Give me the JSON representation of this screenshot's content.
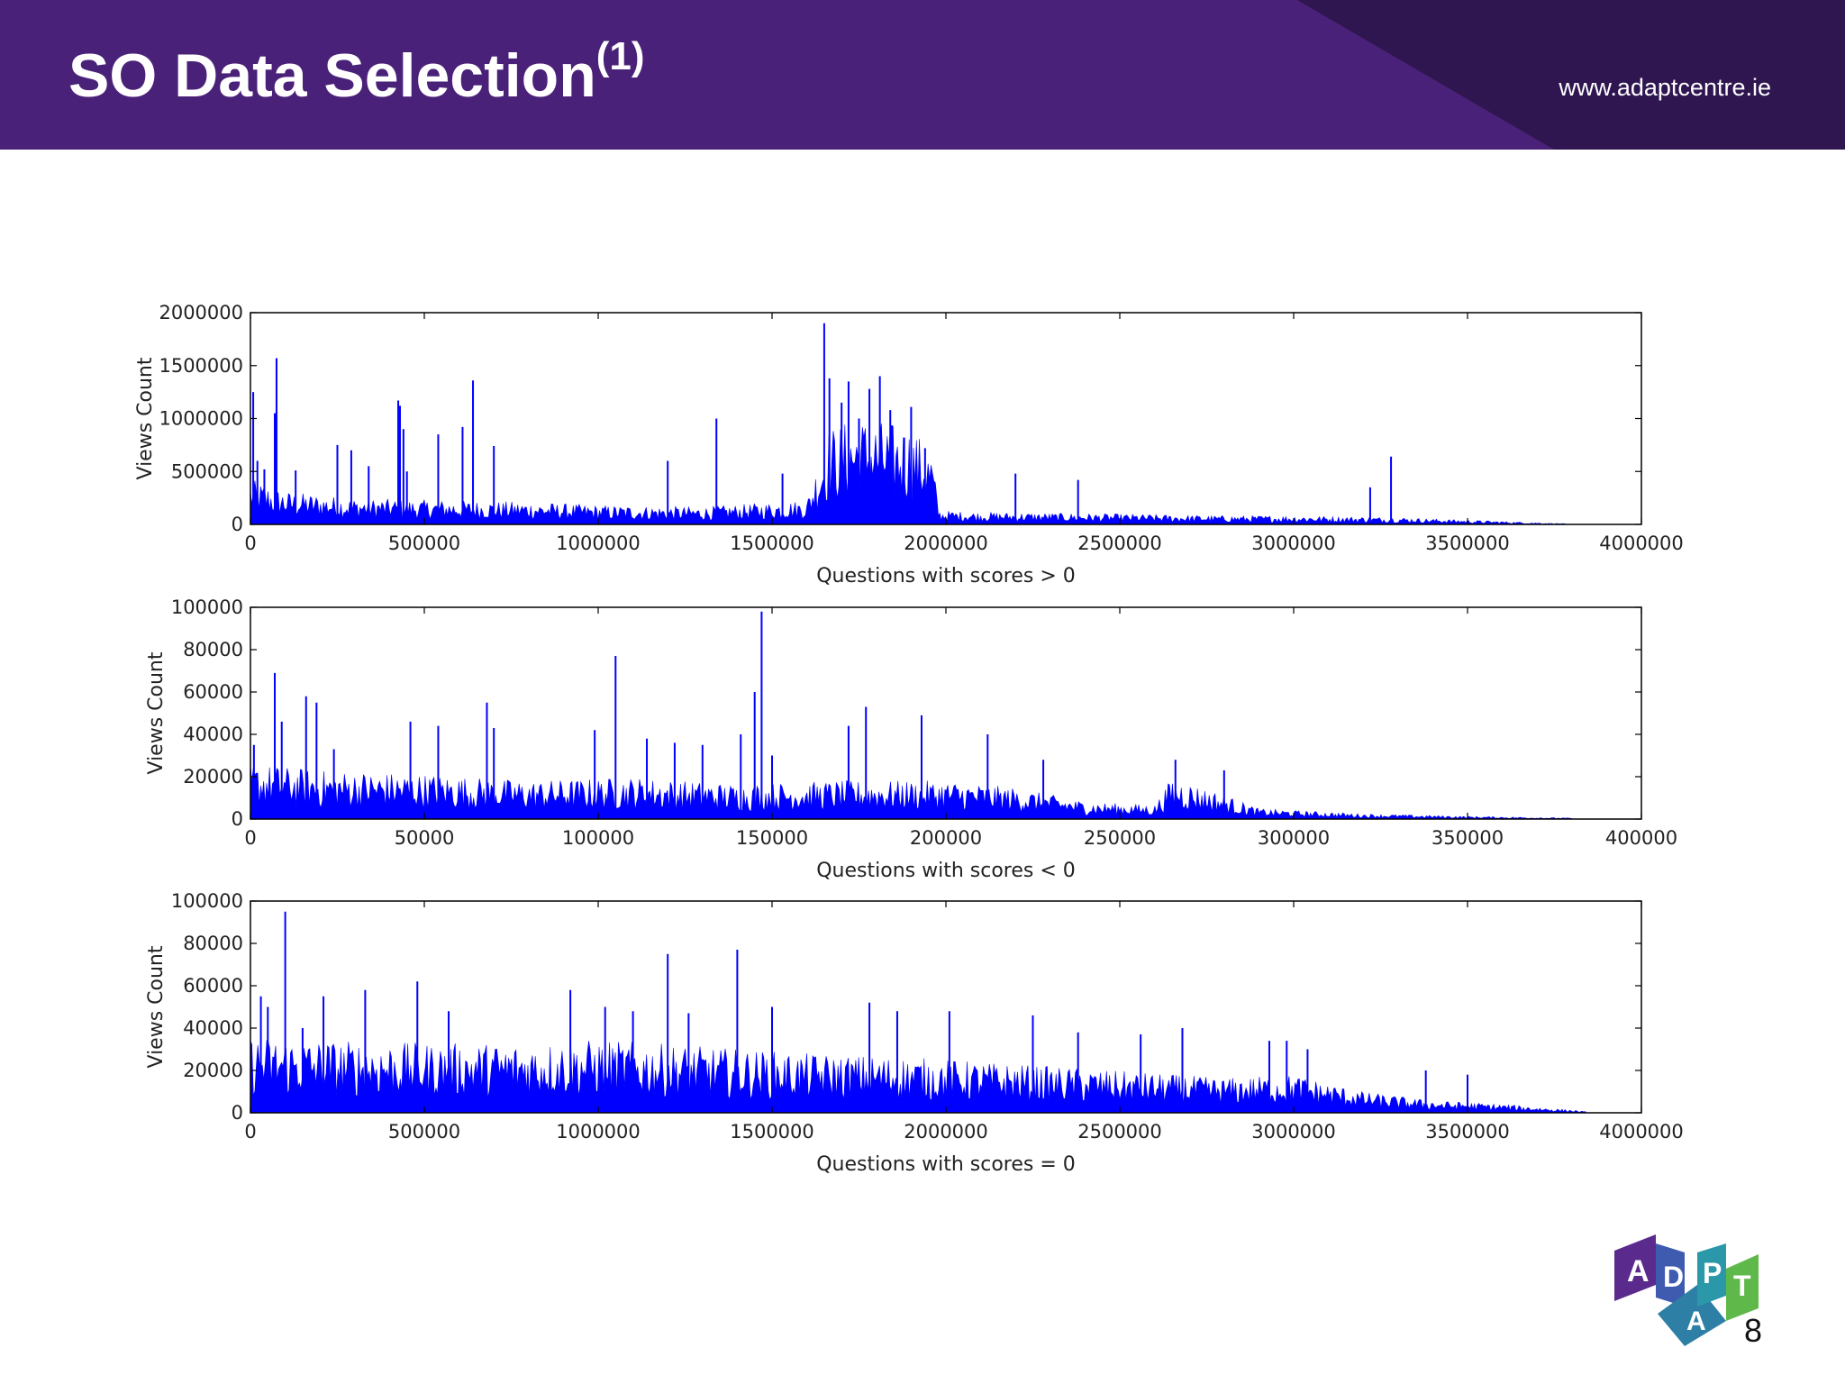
{
  "header": {
    "title": "SO Data Selection",
    "title_superscript": "(1)",
    "url": "www.adaptcentre.ie",
    "colors": {
      "background": "#4a2178",
      "facet": "#2f1650",
      "text": "#ffffff"
    }
  },
  "page_number": "8",
  "logo": {
    "letters": [
      "A",
      "D",
      "A",
      "P",
      "T"
    ],
    "icon": "adapt-logo"
  },
  "chart_data": [
    {
      "type": "bar",
      "xlabel": "Questions with scores > 0",
      "ylabel": "Views Count",
      "xlim": [
        0,
        4000000
      ],
      "ylim": [
        0,
        2000000
      ],
      "x_ticks": [
        0,
        500000,
        1000000,
        1500000,
        2000000,
        2500000,
        3000000,
        3500000,
        4000000
      ],
      "y_ticks": [
        0,
        500000,
        1000000,
        1500000,
        2000000
      ],
      "color": "#0000ff",
      "data_extent": 3780000,
      "x": [
        8000,
        20000,
        40000,
        70000,
        75000,
        130000,
        250000,
        290000,
        340000,
        425000,
        430000,
        440000,
        450000,
        540000,
        610000,
        640000,
        700000,
        1200000,
        1340000,
        1530000,
        1650000,
        1665000,
        1700000,
        1720000,
        1750000,
        1780000,
        1810000,
        1840000,
        1880000,
        1900000,
        1940000,
        1960000,
        2200000,
        2380000,
        3220000,
        3280000
      ],
      "values": [
        1250000,
        600000,
        520000,
        1050000,
        1570000,
        510000,
        750000,
        700000,
        550000,
        1170000,
        1120000,
        900000,
        500000,
        850000,
        920000,
        1360000,
        740000,
        600000,
        1000000,
        480000,
        1900000,
        1380000,
        1150000,
        1350000,
        1000000,
        1280000,
        1400000,
        1080000,
        820000,
        1110000,
        720000,
        470000,
        480000,
        420000,
        350000,
        640000
      ],
      "baseline": [
        [
          0,
          260000
        ],
        [
          100000,
          190000
        ],
        [
          300000,
          150000
        ],
        [
          500000,
          140000
        ],
        [
          800000,
          130000
        ],
        [
          1000000,
          110000
        ],
        [
          1300000,
          100000
        ],
        [
          1600000,
          140000
        ],
        [
          1660000,
          550000
        ],
        [
          1750000,
          620000
        ],
        [
          1900000,
          560000
        ],
        [
          1960000,
          420000
        ],
        [
          1980000,
          80000
        ],
        [
          2100000,
          70000
        ],
        [
          2500000,
          60000
        ],
        [
          2800000,
          50000
        ],
        [
          3000000,
          50000
        ],
        [
          3300000,
          40000
        ],
        [
          3500000,
          25000
        ],
        [
          3700000,
          10000
        ],
        [
          3780000,
          4000
        ]
      ]
    },
    {
      "type": "bar",
      "xlabel": "Questions with scores < 0",
      "ylabel": "Views Count",
      "xlim": [
        0,
        400000
      ],
      "ylim": [
        0,
        100000
      ],
      "x_ticks": [
        0,
        50000,
        100000,
        150000,
        200000,
        250000,
        300000,
        350000,
        400000
      ],
      "y_ticks": [
        0,
        20000,
        40000,
        60000,
        80000,
        100000
      ],
      "color": "#0000ff",
      "data_extent": 380000,
      "x": [
        1000,
        7000,
        9000,
        16000,
        19000,
        24000,
        46000,
        54000,
        68000,
        70000,
        99000,
        105000,
        114000,
        122000,
        130000,
        141000,
        145000,
        147000,
        150000,
        172000,
        177000,
        193000,
        212000,
        228000,
        266000,
        280000
      ],
      "values": [
        35000,
        69000,
        46000,
        58000,
        55000,
        33000,
        46000,
        44000,
        55000,
        43000,
        42000,
        77000,
        38000,
        36000,
        35000,
        40000,
        60000,
        98000,
        30000,
        44000,
        53000,
        49000,
        40000,
        28000,
        28000,
        23000
      ],
      "baseline": [
        [
          0,
          16000
        ],
        [
          20000,
          14000
        ],
        [
          50000,
          13000
        ],
        [
          80000,
          11000
        ],
        [
          110000,
          12000
        ],
        [
          140000,
          10000
        ],
        [
          170000,
          11000
        ],
        [
          200000,
          11000
        ],
        [
          220000,
          9000
        ],
        [
          240000,
          5000
        ],
        [
          260000,
          4000
        ],
        [
          265000,
          12000
        ],
        [
          280000,
          7000
        ],
        [
          290000,
          3000
        ],
        [
          320000,
          1500
        ],
        [
          350000,
          800
        ],
        [
          380000,
          300
        ]
      ]
    },
    {
      "type": "bar",
      "xlabel": "Questions with scores = 0",
      "ylabel": "Views Count",
      "xlim": [
        0,
        4000000
      ],
      "ylim": [
        0,
        100000
      ],
      "x_ticks": [
        0,
        500000,
        1000000,
        1500000,
        2000000,
        2500000,
        3000000,
        3500000,
        4000000
      ],
      "y_ticks": [
        0,
        20000,
        40000,
        60000,
        80000,
        100000
      ],
      "color": "#0000ff",
      "data_extent": 3840000,
      "x": [
        30000,
        50000,
        100000,
        150000,
        210000,
        330000,
        480000,
        570000,
        920000,
        1020000,
        1100000,
        1200000,
        1260000,
        1400000,
        1500000,
        1780000,
        1860000,
        2010000,
        2250000,
        2380000,
        2560000,
        2680000,
        2930000,
        2980000,
        3040000,
        3380000,
        3500000
      ],
      "values": [
        55000,
        50000,
        95000,
        40000,
        55000,
        58000,
        62000,
        48000,
        58000,
        50000,
        48000,
        75000,
        47000,
        77000,
        50000,
        52000,
        48000,
        48000,
        46000,
        38000,
        37000,
        40000,
        34000,
        34000,
        30000,
        20000,
        18000
      ],
      "baseline": [
        [
          0,
          22000
        ],
        [
          200000,
          21000
        ],
        [
          500000,
          20000
        ],
        [
          800000,
          20000
        ],
        [
          1000000,
          21000
        ],
        [
          1300000,
          19000
        ],
        [
          1600000,
          17000
        ],
        [
          1900000,
          16000
        ],
        [
          2200000,
          14000
        ],
        [
          2500000,
          12000
        ],
        [
          2800000,
          10000
        ],
        [
          3000000,
          11000
        ],
        [
          3200000,
          6000
        ],
        [
          3400000,
          3500
        ],
        [
          3600000,
          2500
        ],
        [
          3800000,
          800
        ],
        [
          3840000,
          300
        ]
      ]
    }
  ]
}
